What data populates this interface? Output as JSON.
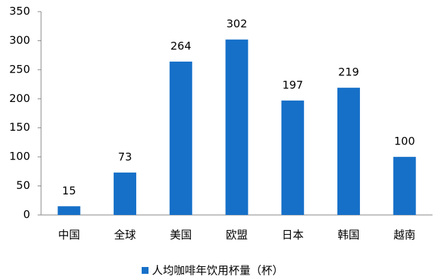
{
  "chart_data": {
    "type": "bar",
    "categories": [
      "中国",
      "全球",
      "美国",
      "欧盟",
      "日本",
      "韩国",
      "越南"
    ],
    "series": [
      {
        "name": "人均咖啡年饮用杯量（杯）",
        "color": "#1670c8",
        "values": [
          15,
          73,
          264,
          302,
          197,
          219,
          100
        ]
      }
    ],
    "ylim": [
      0,
      350
    ],
    "yticks": [
      0,
      50,
      100,
      150,
      200,
      250,
      300,
      350
    ],
    "grid": false,
    "legend": "bottom",
    "data_labels": true
  }
}
